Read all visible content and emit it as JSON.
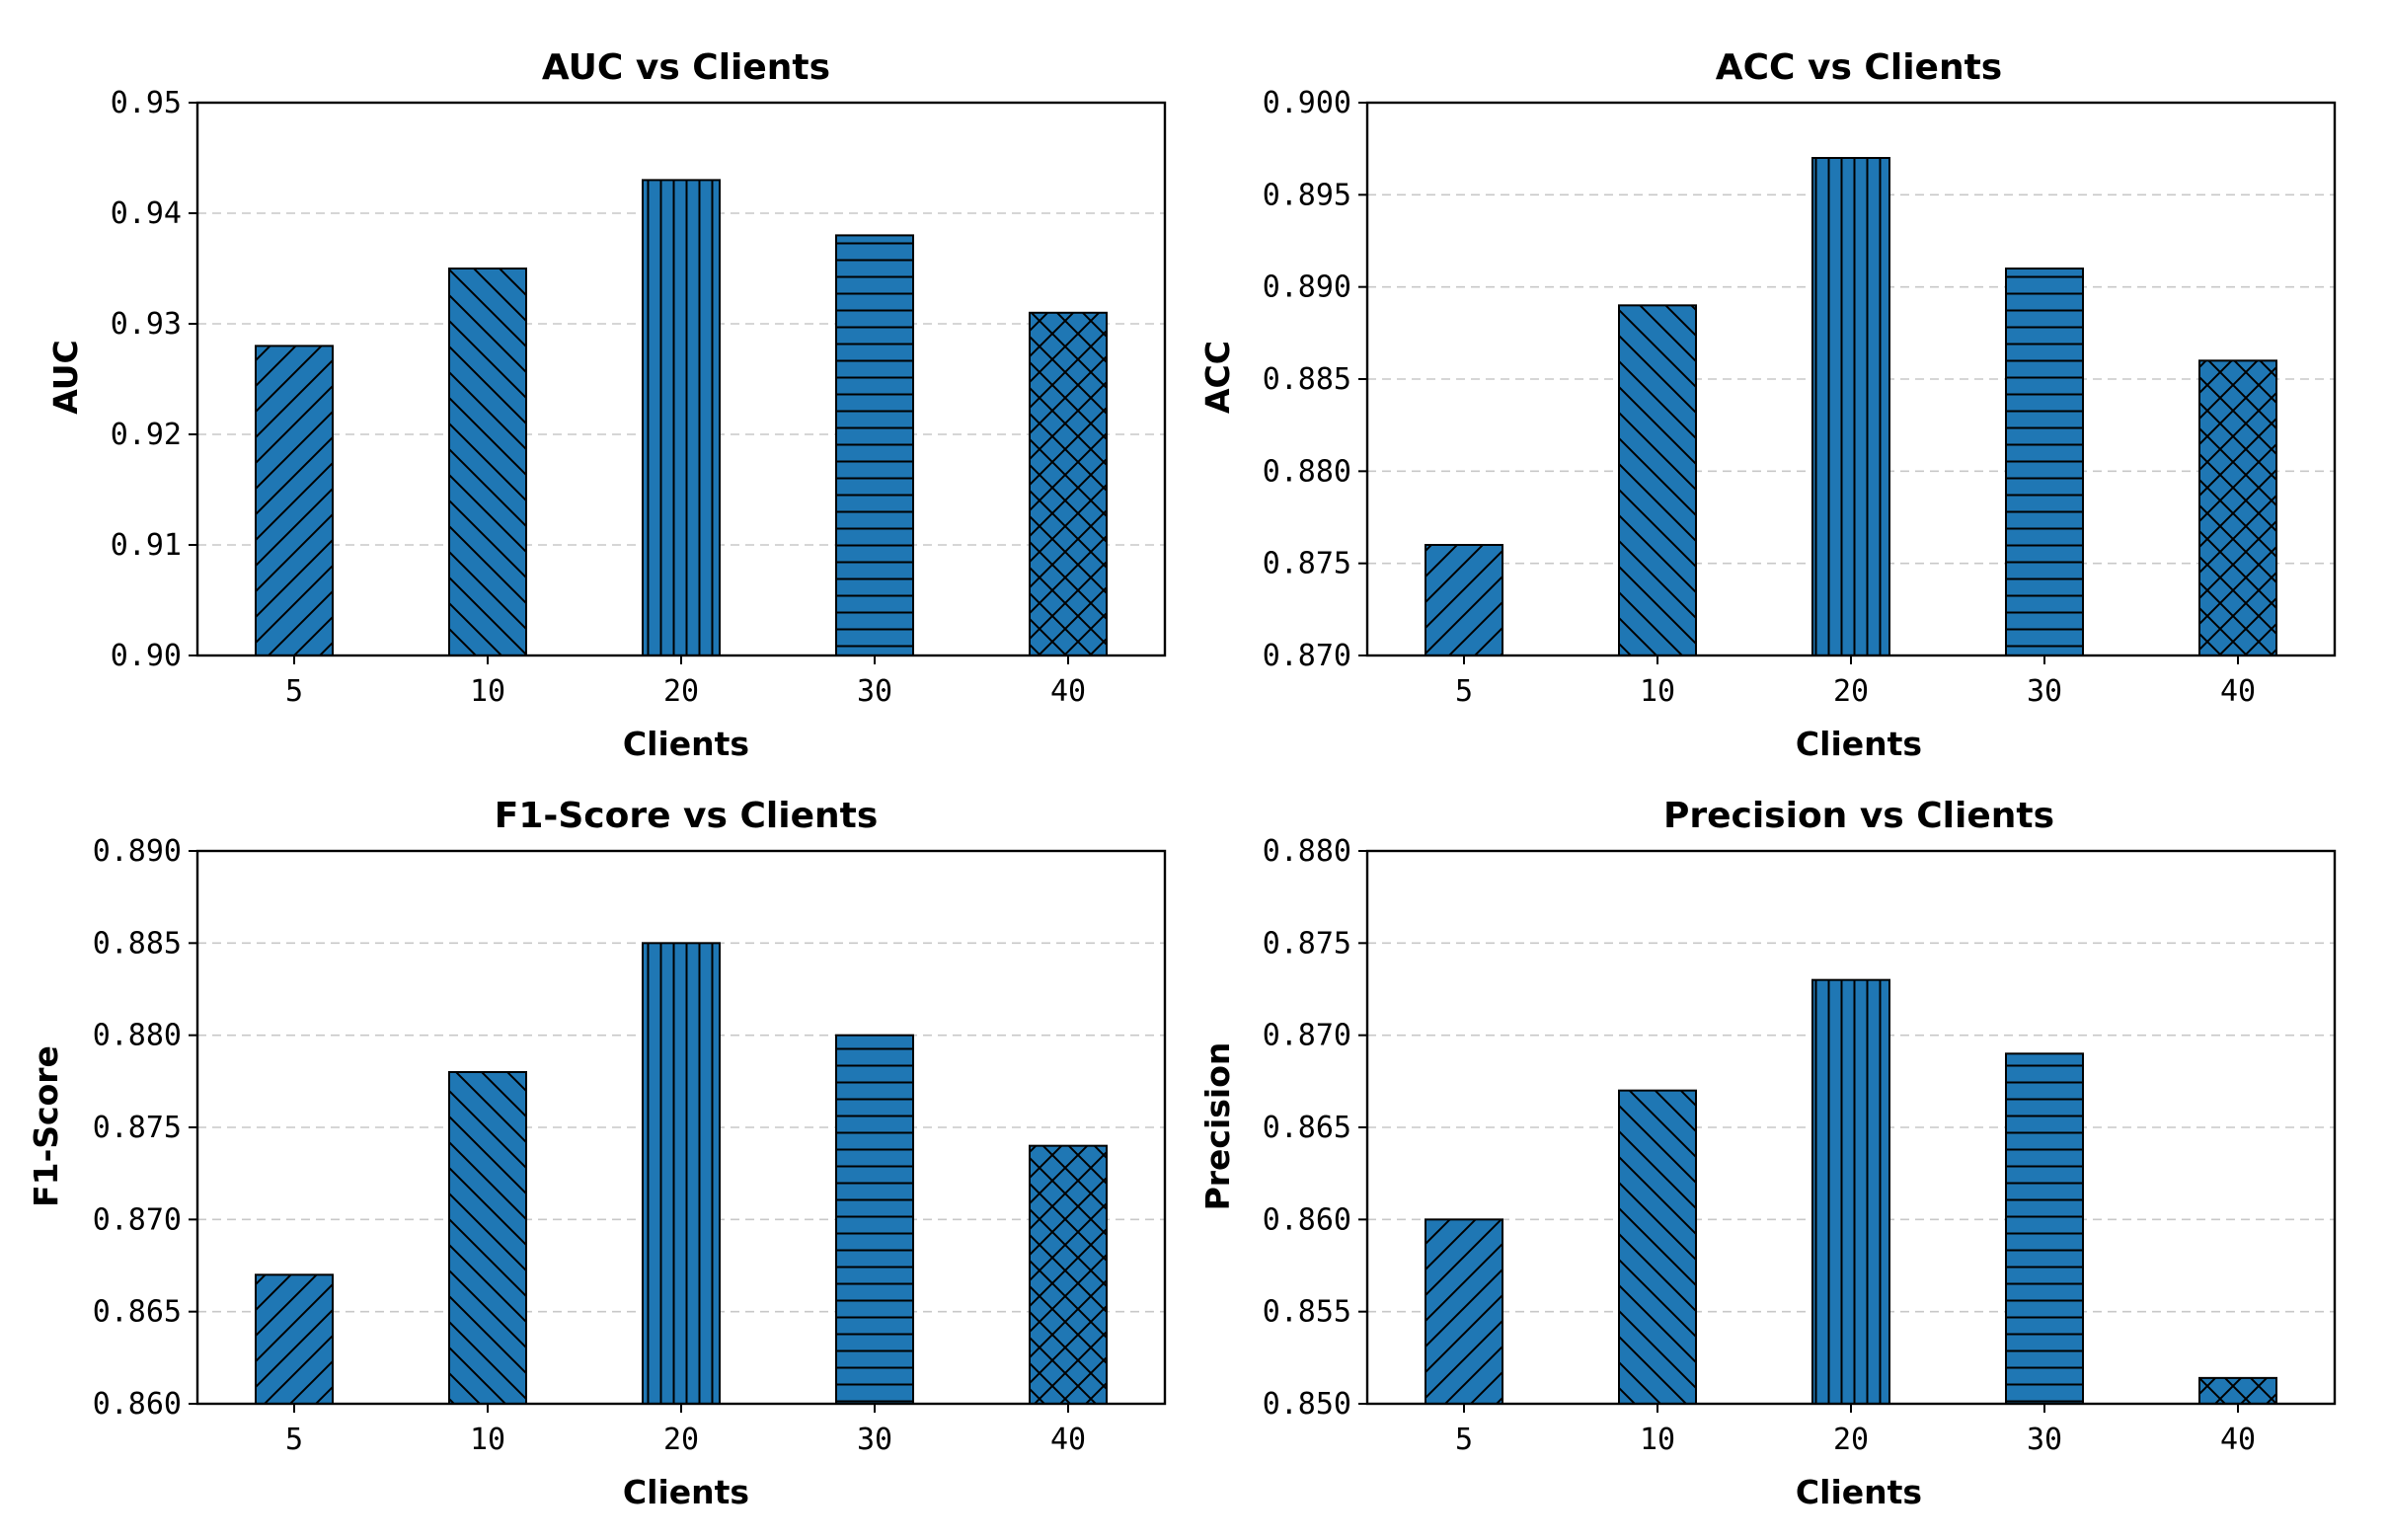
{
  "chart_data": [
    {
      "type": "bar",
      "title": "AUC vs Clients",
      "xlabel": "Clients",
      "ylabel": "AUC",
      "categories": [
        "5",
        "10",
        "20",
        "30",
        "40"
      ],
      "values": [
        0.928,
        0.935,
        0.943,
        0.938,
        0.931
      ],
      "ylim": [
        0.9,
        0.95
      ],
      "yticks": [
        "0.90",
        "0.91",
        "0.92",
        "0.93",
        "0.94",
        "0.95"
      ],
      "ytick_values": [
        0.9,
        0.91,
        0.92,
        0.93,
        0.94,
        0.95
      ],
      "hatches": [
        "diagonal-up",
        "diagonal-down",
        "vertical",
        "horizontal",
        "crosshatch"
      ],
      "grid": "y-dashed",
      "bar_color": "#1f77b4"
    },
    {
      "type": "bar",
      "title": "ACC vs Clients",
      "xlabel": "Clients",
      "ylabel": "ACC",
      "categories": [
        "5",
        "10",
        "20",
        "30",
        "40"
      ],
      "values": [
        0.876,
        0.889,
        0.897,
        0.891,
        0.886
      ],
      "ylim": [
        0.87,
        0.9
      ],
      "yticks": [
        "0.870",
        "0.875",
        "0.880",
        "0.885",
        "0.890",
        "0.895",
        "0.900"
      ],
      "ytick_values": [
        0.87,
        0.875,
        0.88,
        0.885,
        0.89,
        0.895,
        0.9
      ],
      "hatches": [
        "diagonal-up",
        "diagonal-down",
        "vertical",
        "horizontal",
        "crosshatch"
      ],
      "grid": "y-dashed",
      "bar_color": "#1f77b4"
    },
    {
      "type": "bar",
      "title": "F1-Score vs Clients",
      "xlabel": "Clients",
      "ylabel": "F1-Score",
      "categories": [
        "5",
        "10",
        "20",
        "30",
        "40"
      ],
      "values": [
        0.867,
        0.878,
        0.885,
        0.88,
        0.874
      ],
      "ylim": [
        0.86,
        0.89
      ],
      "yticks": [
        "0.860",
        "0.865",
        "0.870",
        "0.875",
        "0.880",
        "0.885",
        "0.890"
      ],
      "ytick_values": [
        0.86,
        0.865,
        0.87,
        0.875,
        0.88,
        0.885,
        0.89
      ],
      "hatches": [
        "diagonal-up",
        "diagonal-down",
        "vertical",
        "horizontal",
        "crosshatch"
      ],
      "grid": "y-dashed",
      "bar_color": "#1f77b4"
    },
    {
      "type": "bar",
      "title": "Precision vs Clients",
      "xlabel": "Clients",
      "ylabel": "Precision",
      "categories": [
        "5",
        "10",
        "20",
        "30",
        "40"
      ],
      "values": [
        0.86,
        0.867,
        0.873,
        0.869,
        0.8514
      ],
      "ylim": [
        0.85,
        0.88
      ],
      "yticks": [
        "0.850",
        "0.855",
        "0.860",
        "0.865",
        "0.870",
        "0.875",
        "0.880"
      ],
      "ytick_values": [
        0.85,
        0.855,
        0.86,
        0.865,
        0.87,
        0.875,
        0.88
      ],
      "hatches": [
        "diagonal-up",
        "diagonal-down",
        "vertical",
        "horizontal",
        "crosshatch"
      ],
      "grid": "y-dashed",
      "bar_color": "#1f77b4"
    }
  ]
}
